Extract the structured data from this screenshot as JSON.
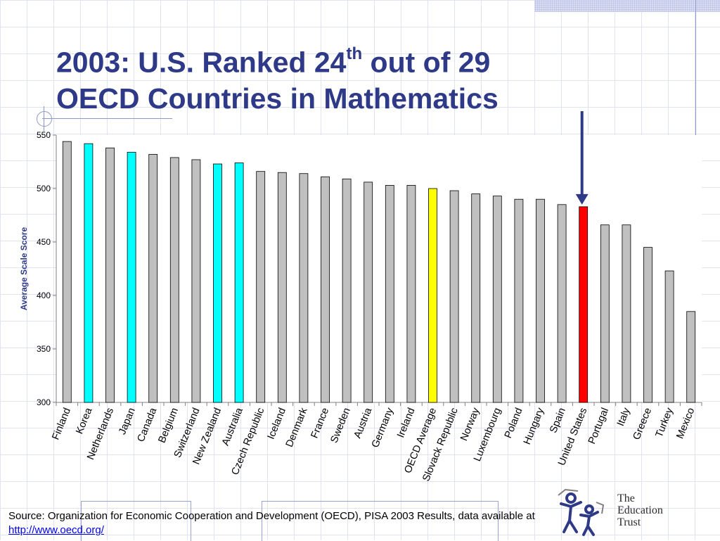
{
  "title": {
    "line1_prefix": "2003:  U.S. Ranked 24",
    "line1_sup": "th",
    "line1_suffix": " out of 29",
    "line2": "OECD Countries in Mathematics"
  },
  "chart_data": {
    "type": "bar",
    "title": "",
    "xlabel": "",
    "ylabel": "Average Scale Score",
    "ylim": [
      300,
      550
    ],
    "yticks": [
      300,
      350,
      400,
      450,
      500,
      550
    ],
    "grid": false,
    "categories": [
      "Finland",
      "Korea",
      "Netherlands",
      "Japan",
      "Canada",
      "Belgium",
      "Switzerland",
      "New Zealand",
      "Australia",
      "Czech Republic",
      "Iceland",
      "Denmark",
      "France",
      "Sweden",
      "Austria",
      "Germany",
      "Ireland",
      "OECD Average",
      "Slovack Republic",
      "Norway",
      "Luxembourg",
      "Poland",
      "Hungary",
      "Spain",
      "United States",
      "Portugal",
      "Italy",
      "Greece",
      "Turkey",
      "Mexico"
    ],
    "values": [
      544,
      542,
      538,
      534,
      532,
      529,
      527,
      523,
      524,
      516,
      515,
      514,
      511,
      509,
      506,
      503,
      503,
      500,
      498,
      495,
      493,
      490,
      490,
      485,
      483,
      466,
      466,
      445,
      423,
      385
    ],
    "bar_colors": [
      "#c0c0c0",
      "#00ffff",
      "#c0c0c0",
      "#00ffff",
      "#c0c0c0",
      "#c0c0c0",
      "#c0c0c0",
      "#00ffff",
      "#00ffff",
      "#c0c0c0",
      "#c0c0c0",
      "#c0c0c0",
      "#c0c0c0",
      "#c0c0c0",
      "#c0c0c0",
      "#c0c0c0",
      "#c0c0c0",
      "#ffff00",
      "#c0c0c0",
      "#c0c0c0",
      "#c0c0c0",
      "#c0c0c0",
      "#c0c0c0",
      "#c0c0c0",
      "#ff0000",
      "#c0c0c0",
      "#c0c0c0",
      "#c0c0c0",
      "#c0c0c0",
      "#c0c0c0"
    ],
    "highlight_category": "United States",
    "arrow_color": "#2e3a87",
    "ylabel_color": "#2e3a87"
  },
  "source": {
    "text": "Source: Organization for Economic Cooperation and Development (OECD), PISA 2003 Results, data available at ",
    "link_text": "http://www.oecd.org/"
  },
  "logo": {
    "line1": "The",
    "line2": "Education",
    "line3": "Trust"
  }
}
